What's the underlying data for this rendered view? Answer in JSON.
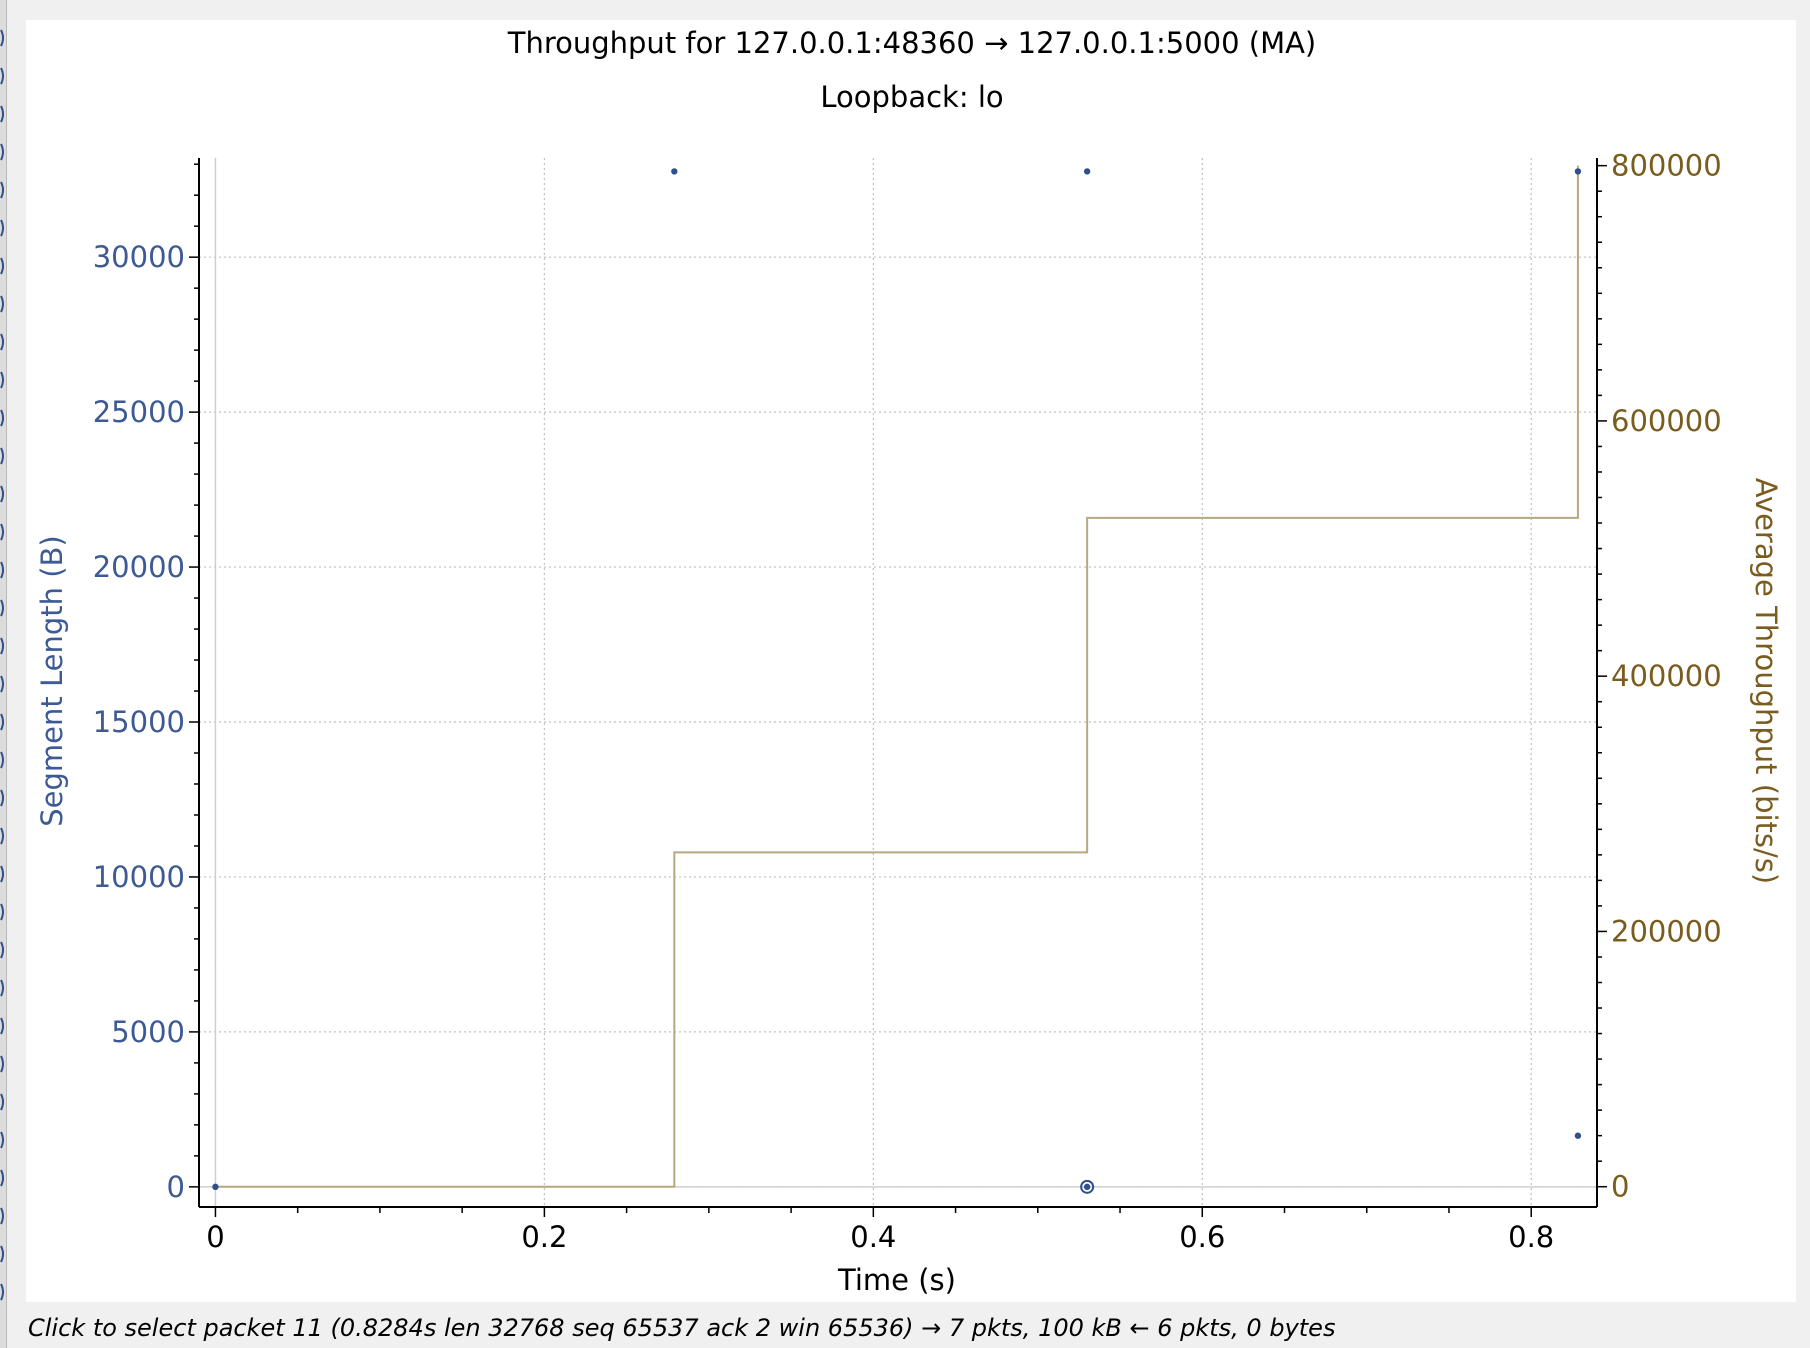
{
  "colors": {
    "segment": "#2f4f8f",
    "segment_axis": "#3d5a94",
    "throughput": "#b8a880",
    "throughput_axis": "#7a5c1e",
    "grid": "#bfbfbf",
    "axis": "#000000"
  },
  "status_bar": {
    "text": "Click to select packet 11 (0.8284s len 32768 seq 65537 ack 2 win 65536) → 7 pkts, 100 kB ← 6 pkts, 0 bytes"
  },
  "chart_data": {
    "type": "scatter",
    "title": "Throughput for 127.0.0.1:48360 → 127.0.0.1:5000 (MA)",
    "subtitle": "Loopback: lo",
    "xlabel": "Time (s)",
    "ylabel": "Segment Length (B)",
    "y2label": "Average Throughput (bits/s)",
    "xlim": [
      -0.01,
      0.84
    ],
    "ylim": [
      -650,
      33200
    ],
    "y2lim": [
      -15900,
      806000
    ],
    "x_ticks": [
      0,
      0.2,
      0.4,
      0.6,
      0.8
    ],
    "x_tick_labels": [
      "0",
      "0.2",
      "0.4",
      "0.6",
      "0.8"
    ],
    "y_ticks": [
      0,
      5000,
      10000,
      15000,
      20000,
      25000,
      30000
    ],
    "y_tick_labels": [
      "0",
      "5000",
      "10000",
      "15000",
      "20000",
      "25000",
      "30000"
    ],
    "y2_ticks": [
      0,
      200000,
      400000,
      600000,
      800000
    ],
    "y2_tick_labels": [
      "0",
      "200000",
      "400000",
      "600000",
      "800000"
    ],
    "grid": true,
    "series": [
      {
        "name": "",
        "kind": "points",
        "axis": "left",
        "x": [
          0.0,
          0.279,
          0.53,
          0.53,
          0.8284,
          0.8284
        ],
        "y": [
          0,
          32768,
          32768,
          0,
          32768,
          1650
        ]
      },
      {
        "name": "",
        "kind": "step",
        "axis": "right",
        "x": [
          0.0,
          0.279,
          0.53,
          0.8284
        ],
        "y": [
          0,
          262000,
          524000,
          800000
        ]
      }
    ],
    "selected_point": {
      "x": 0.53,
      "y": 0
    }
  }
}
